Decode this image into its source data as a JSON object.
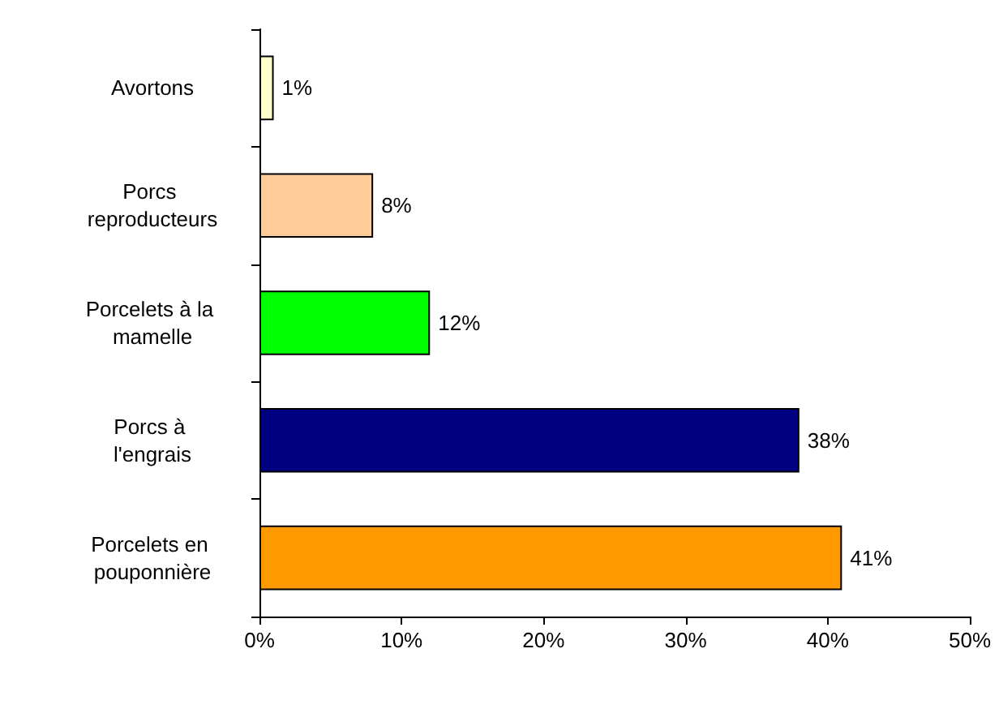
{
  "chart_data": {
    "type": "bar",
    "orientation": "horizontal",
    "categories": [
      "Avortons",
      "Porcs reproducteurs",
      "Porcelets à la mamelle",
      "Porcs à l'engrais",
      "Porcelets en pouponnière"
    ],
    "values": [
      1,
      8,
      12,
      38,
      41
    ],
    "colors": [
      "#ffffcc",
      "#ffcc99",
      "#00ff00",
      "#000080",
      "#ff9900"
    ],
    "value_labels": [
      "1%",
      "8%",
      "12%",
      "38%",
      "41%"
    ],
    "xlim": [
      0,
      50
    ],
    "xticks": [
      {
        "value": 0,
        "label": "0%"
      },
      {
        "value": 10,
        "label": "10%"
      },
      {
        "value": 20,
        "label": "20%"
      },
      {
        "value": 30,
        "label": "30%"
      },
      {
        "value": 40,
        "label": "40%"
      },
      {
        "value": 50,
        "label": "50%"
      }
    ],
    "grid": false
  }
}
